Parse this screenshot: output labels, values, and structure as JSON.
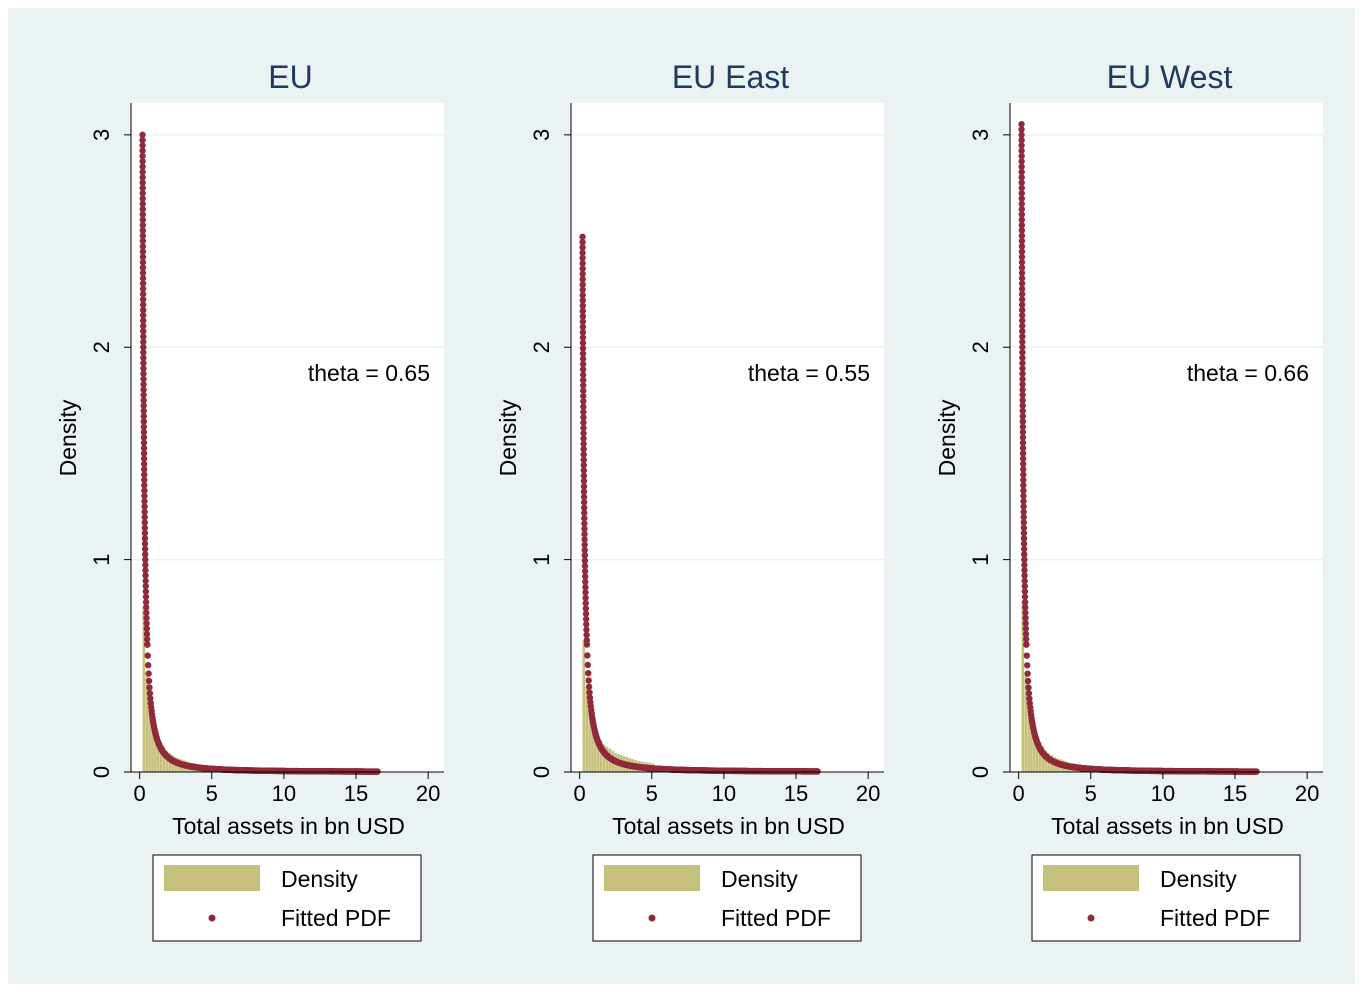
{
  "colors": {
    "background": "#eaf2f3",
    "plot_area": "#ffffff",
    "grid": "#eaf2f3",
    "bars": "#c5c07a",
    "fitted": "#8f2a3b",
    "text": "#1f3a5f",
    "axis": "#000000"
  },
  "chart_data": [
    {
      "type": "bar",
      "title": "EU",
      "xlabel": "Total assets in bn USD",
      "ylabel": "Density",
      "xlim": [
        -0.6,
        21.1
      ],
      "ylim": [
        0,
        3.15
      ],
      "xticks": [
        "0",
        "5",
        "10",
        "15",
        "20"
      ],
      "yticks": [
        "0",
        "1",
        "2",
        "3"
      ],
      "grid": true,
      "legend_position": "bottom",
      "annotation": "theta = 0.65",
      "theta": 0.65,
      "legend": [
        "Density",
        "Fitted PDF"
      ],
      "series": [
        {
          "name": "Density",
          "kind": "histogram",
          "bin_width": 0.2,
          "bins_start": [
            0.2,
            0.4,
            0.6,
            0.8,
            1.0,
            1.2,
            1.4,
            1.6,
            1.8,
            2.0,
            2.2,
            2.4,
            2.6,
            2.8,
            3.0,
            3.2,
            3.4,
            3.6,
            3.8,
            4.0,
            4.2,
            4.4,
            4.6,
            4.8,
            5.0
          ],
          "values": [
            0.78,
            0.45,
            0.32,
            0.24,
            0.19,
            0.16,
            0.14,
            0.12,
            0.1,
            0.09,
            0.08,
            0.07,
            0.065,
            0.06,
            0.055,
            0.05,
            0.045,
            0.042,
            0.04,
            0.036,
            0.034,
            0.032,
            0.03,
            0.028,
            0.026
          ]
        },
        {
          "name": "Fitted PDF",
          "kind": "scatter",
          "x_min": 0.2,
          "x_max": 16.5,
          "y_at_min": 3.0
        }
      ]
    },
    {
      "type": "bar",
      "title": "EU East",
      "xlabel": "Total assets in bn USD",
      "ylabel": "Density",
      "xlim": [
        -0.6,
        21.1
      ],
      "ylim": [
        0,
        3.15
      ],
      "xticks": [
        "0",
        "5",
        "10",
        "15",
        "20"
      ],
      "yticks": [
        "0",
        "1",
        "2",
        "3"
      ],
      "grid": true,
      "legend_position": "bottom",
      "annotation": "theta = 0.55",
      "theta": 0.55,
      "legend": [
        "Density",
        "Fitted PDF"
      ],
      "series": [
        {
          "name": "Density",
          "kind": "histogram",
          "bin_width": 0.2,
          "bins_start": [
            0.2,
            0.4,
            0.6,
            0.8,
            1.0,
            1.2,
            1.4,
            1.6,
            1.8,
            2.0,
            2.2,
            2.4,
            2.6,
            2.8,
            3.0,
            3.2,
            3.4,
            3.6,
            3.8,
            4.0,
            4.2,
            4.4,
            4.6,
            4.8,
            5.0
          ],
          "values": [
            0.62,
            0.4,
            0.3,
            0.24,
            0.2,
            0.17,
            0.15,
            0.13,
            0.12,
            0.11,
            0.1,
            0.09,
            0.085,
            0.08,
            0.075,
            0.07,
            0.065,
            0.06,
            0.056,
            0.052,
            0.05,
            0.047,
            0.045,
            0.043,
            0.04
          ]
        },
        {
          "name": "Fitted PDF",
          "kind": "scatter",
          "x_min": 0.2,
          "x_max": 16.5,
          "y_at_min": 2.52
        }
      ]
    },
    {
      "type": "bar",
      "title": "EU West",
      "xlabel": "Total assets in bn USD",
      "ylabel": "Density",
      "xlim": [
        -0.6,
        21.1
      ],
      "ylim": [
        0,
        3.15
      ],
      "xticks": [
        "0",
        "5",
        "10",
        "15",
        "20"
      ],
      "yticks": [
        "0",
        "1",
        "2",
        "3"
      ],
      "grid": true,
      "legend_position": "bottom",
      "annotation": "theta = 0.66",
      "theta": 0.66,
      "legend": [
        "Density",
        "Fitted PDF"
      ],
      "series": [
        {
          "name": "Density",
          "kind": "histogram",
          "bin_width": 0.2,
          "bins_start": [
            0.2,
            0.4,
            0.6,
            0.8,
            1.0,
            1.2,
            1.4,
            1.6,
            1.8,
            2.0,
            2.2,
            2.4,
            2.6,
            2.8,
            3.0,
            3.2,
            3.4,
            3.6,
            3.8,
            4.0,
            4.2,
            4.4,
            4.6,
            4.8,
            5.0
          ],
          "values": [
            0.8,
            0.46,
            0.32,
            0.24,
            0.19,
            0.16,
            0.14,
            0.12,
            0.1,
            0.09,
            0.08,
            0.07,
            0.065,
            0.06,
            0.055,
            0.05,
            0.045,
            0.042,
            0.04,
            0.036,
            0.034,
            0.032,
            0.03,
            0.028,
            0.026
          ]
        },
        {
          "name": "Fitted PDF",
          "kind": "scatter",
          "x_min": 0.2,
          "x_max": 16.5,
          "y_at_min": 3.05
        }
      ]
    }
  ]
}
